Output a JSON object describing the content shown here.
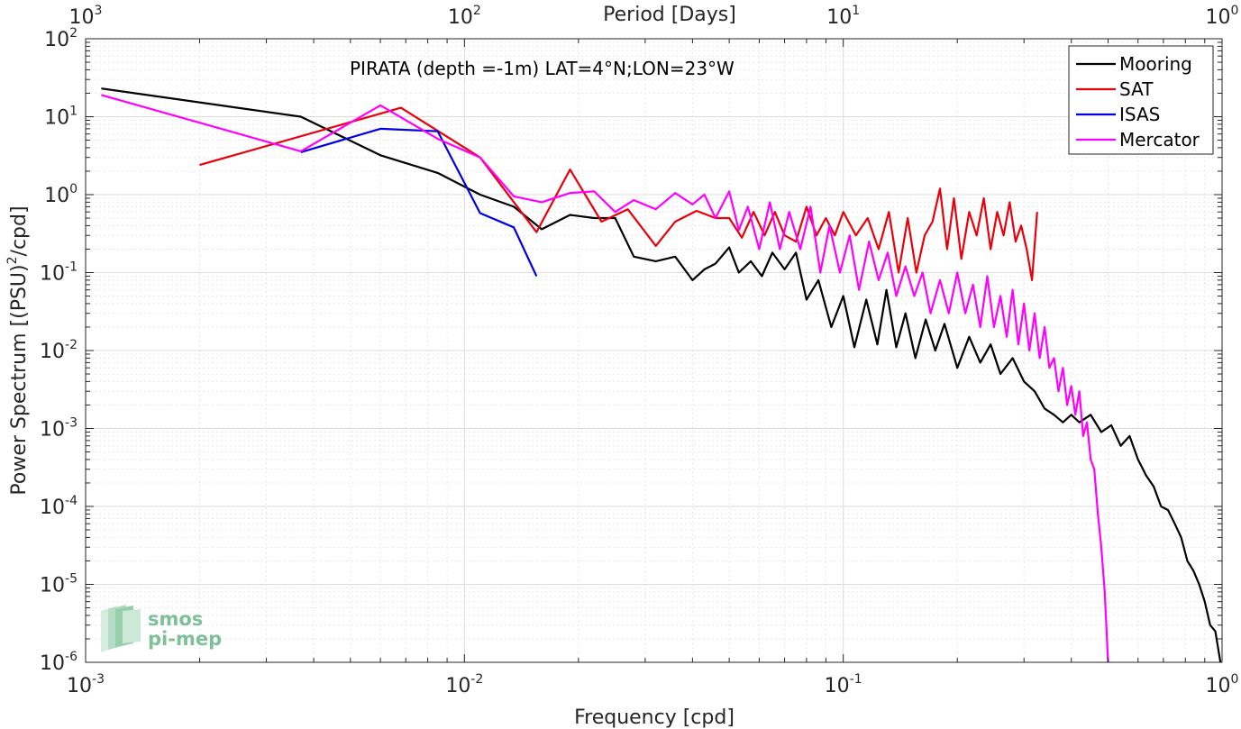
{
  "chart_data": {
    "type": "line",
    "title": "",
    "annotation": "PIRATA (depth =-1m) LAT=4°N;LON=23°W",
    "xlabel": "Frequency [cpd]",
    "ylabel": "Power Spectrum [(PSU)",
    "ylabel_sup": "2",
    "ylabel_tail": "/cpd]",
    "x2label": "Period [Days]",
    "xscale": "log",
    "yscale": "log",
    "xlim": [
      0.001,
      1
    ],
    "ylim": [
      1e-06,
      100
    ],
    "grid": true,
    "legend_position": "top-right",
    "x_ticks": [
      {
        "value": 0.001,
        "base": "10",
        "exp": "-3"
      },
      {
        "value": 0.01,
        "base": "10",
        "exp": "-2"
      },
      {
        "value": 0.1,
        "base": "10",
        "exp": "-1"
      },
      {
        "value": 1,
        "base": "10",
        "exp": "0"
      }
    ],
    "y_ticks": [
      {
        "value": 1e-06,
        "base": "10",
        "exp": "-6"
      },
      {
        "value": 1e-05,
        "base": "10",
        "exp": "-5"
      },
      {
        "value": 0.0001,
        "base": "10",
        "exp": "-4"
      },
      {
        "value": 0.001,
        "base": "10",
        "exp": "-3"
      },
      {
        "value": 0.01,
        "base": "10",
        "exp": "-2"
      },
      {
        "value": 0.1,
        "base": "10",
        "exp": "-1"
      },
      {
        "value": 1,
        "base": "10",
        "exp": "0"
      },
      {
        "value": 10,
        "base": "10",
        "exp": "1"
      },
      {
        "value": 100,
        "base": "10",
        "exp": "2"
      }
    ],
    "x2_ticks": [
      {
        "value": 0.001,
        "base": "10",
        "exp": "3"
      },
      {
        "value": 0.01,
        "base": "10",
        "exp": "2"
      },
      {
        "value": 0.1,
        "base": "10",
        "exp": "1"
      },
      {
        "value": 1,
        "base": "10",
        "exp": "0"
      }
    ],
    "series": [
      {
        "name": "Mooring",
        "color": "#000000",
        "x": [
          0.0011,
          0.0037,
          0.006,
          0.0085,
          0.011,
          0.0135,
          0.016,
          0.019,
          0.022,
          0.025,
          0.028,
          0.032,
          0.036,
          0.04,
          0.043,
          0.046,
          0.05,
          0.053,
          0.057,
          0.061,
          0.065,
          0.07,
          0.075,
          0.08,
          0.086,
          0.093,
          0.1,
          0.107,
          0.115,
          0.123,
          0.13,
          0.138,
          0.146,
          0.155,
          0.165,
          0.175,
          0.185,
          0.2,
          0.215,
          0.23,
          0.245,
          0.26,
          0.28,
          0.3,
          0.32,
          0.34,
          0.36,
          0.38,
          0.4,
          0.42,
          0.45,
          0.48,
          0.51,
          0.54,
          0.57,
          0.6,
          0.63,
          0.66,
          0.69,
          0.72,
          0.75,
          0.78,
          0.81,
          0.84,
          0.87,
          0.9,
          0.93,
          0.96,
          0.99
        ],
        "y": [
          23,
          10,
          3.2,
          1.9,
          1.0,
          0.7,
          0.36,
          0.55,
          0.5,
          0.5,
          0.16,
          0.14,
          0.16,
          0.08,
          0.11,
          0.13,
          0.21,
          0.1,
          0.14,
          0.09,
          0.18,
          0.11,
          0.18,
          0.045,
          0.08,
          0.02,
          0.05,
          0.011,
          0.045,
          0.012,
          0.06,
          0.011,
          0.03,
          0.008,
          0.025,
          0.01,
          0.022,
          0.006,
          0.015,
          0.007,
          0.012,
          0.005,
          0.008,
          0.004,
          0.003,
          0.0018,
          0.0015,
          0.0012,
          0.0015,
          0.0012,
          0.0015,
          0.0009,
          0.0011,
          0.0006,
          0.0008,
          0.0004,
          0.00025,
          0.00018,
          0.0001,
          9e-05,
          6e-05,
          4e-05,
          2e-05,
          1.5e-05,
          1e-05,
          6e-06,
          3e-06,
          2.5e-06,
          1e-06
        ]
      },
      {
        "name": "SAT",
        "color": "#e8000b",
        "x": [
          0.002,
          0.0068,
          0.011,
          0.0155,
          0.019,
          0.023,
          0.027,
          0.032,
          0.036,
          0.041,
          0.046,
          0.05,
          0.054,
          0.058,
          0.062,
          0.066,
          0.07,
          0.075,
          0.08,
          0.085,
          0.09,
          0.095,
          0.1,
          0.108,
          0.116,
          0.124,
          0.132,
          0.14,
          0.148,
          0.156,
          0.164,
          0.172,
          0.18,
          0.188,
          0.196,
          0.205,
          0.215,
          0.225,
          0.235,
          0.245,
          0.255,
          0.265,
          0.275,
          0.285,
          0.295,
          0.305,
          0.315,
          0.325
        ],
        "y": [
          2.4,
          13,
          3.0,
          0.33,
          2.1,
          0.45,
          0.65,
          0.22,
          0.45,
          0.62,
          0.5,
          0.5,
          0.28,
          0.6,
          0.3,
          0.6,
          0.3,
          0.25,
          0.7,
          0.3,
          0.5,
          0.3,
          0.6,
          0.3,
          0.5,
          0.2,
          0.6,
          0.1,
          0.5,
          0.1,
          0.3,
          0.45,
          1.2,
          0.2,
          0.9,
          0.15,
          0.6,
          0.3,
          0.9,
          0.2,
          0.6,
          0.3,
          0.8,
          0.25,
          0.4,
          0.2,
          0.08,
          0.6
        ]
      },
      {
        "name": "ISAS",
        "color": "#0000e8",
        "x": [
          0.0037,
          0.006,
          0.0085,
          0.011,
          0.0135,
          0.0155
        ],
        "y": [
          3.5,
          7.0,
          6.5,
          0.58,
          0.38,
          0.09
        ]
      },
      {
        "name": "Mercator",
        "color": "#ff00ff",
        "x": [
          0.0011,
          0.0037,
          0.006,
          0.0085,
          0.011,
          0.0135,
          0.016,
          0.019,
          0.022,
          0.025,
          0.028,
          0.032,
          0.036,
          0.04,
          0.043,
          0.046,
          0.05,
          0.053,
          0.056,
          0.06,
          0.064,
          0.068,
          0.072,
          0.077,
          0.082,
          0.087,
          0.092,
          0.098,
          0.104,
          0.11,
          0.117,
          0.124,
          0.131,
          0.138,
          0.146,
          0.154,
          0.162,
          0.17,
          0.18,
          0.19,
          0.2,
          0.21,
          0.22,
          0.23,
          0.24,
          0.25,
          0.26,
          0.27,
          0.28,
          0.29,
          0.3,
          0.31,
          0.32,
          0.33,
          0.34,
          0.35,
          0.36,
          0.37,
          0.38,
          0.39,
          0.4,
          0.41,
          0.42,
          0.43,
          0.44,
          0.45,
          0.46,
          0.47,
          0.48,
          0.49,
          0.5
        ],
        "y": [
          19,
          3.6,
          14,
          5.2,
          3.0,
          0.95,
          0.8,
          1.05,
          1.1,
          0.6,
          0.85,
          0.65,
          1.05,
          0.75,
          1.0,
          0.5,
          1.1,
          0.35,
          0.7,
          0.2,
          0.8,
          0.2,
          0.6,
          0.2,
          0.7,
          0.1,
          0.4,
          0.1,
          0.3,
          0.06,
          0.25,
          0.08,
          0.18,
          0.05,
          0.12,
          0.05,
          0.1,
          0.03,
          0.08,
          0.03,
          0.1,
          0.03,
          0.07,
          0.02,
          0.09,
          0.02,
          0.05,
          0.015,
          0.06,
          0.012,
          0.04,
          0.01,
          0.03,
          0.008,
          0.02,
          0.006,
          0.008,
          0.003,
          0.006,
          0.002,
          0.0035,
          0.0015,
          0.003,
          0.0008,
          0.0012,
          0.0004,
          0.0003,
          8e-05,
          3e-05,
          8e-06,
          1e-06
        ]
      }
    ]
  },
  "logo": {
    "line1": "smos",
    "line2": "pi-mep"
  }
}
